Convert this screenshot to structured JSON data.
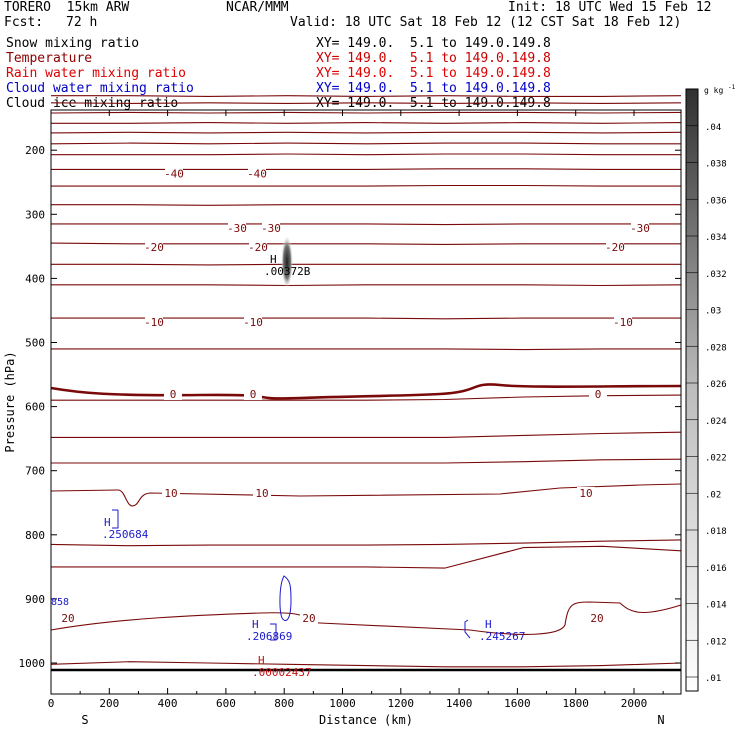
{
  "header": {
    "model": "TORERO  15km ARW",
    "center": "NCAR/MMM",
    "init": "Init: 18 UTC Wed 15 Feb 12",
    "fcst_label": "Fcst:",
    "fcst_hours": "72 h",
    "valid": "Valid: 18 UTC Sat 18 Feb 12 (12 CST Sat 18 Feb 12)"
  },
  "fields": [
    {
      "name": "Snow mixing ratio",
      "xy": "XY= 149.0.  5.1 to 149.0.149.8",
      "color": "#000000"
    },
    {
      "name": "Temperature",
      "xy": "XY= 149.0.  5.1 to 149.0.149.8",
      "color": "#8b0000"
    },
    {
      "name": "Rain water mixing ratio",
      "xy": "XY= 149.0.  5.1 to 149.0.149.8",
      "color": "#e00000"
    },
    {
      "name": "Cloud water mixing ratio",
      "xy": "XY= 149.0.  5.1 to 149.0.149.8",
      "color": "#0000c8"
    },
    {
      "name": "Cloud ice mixing ratio",
      "xy": "XY= 149.0.  5.1 to 149.0.149.8",
      "color": "#000000"
    }
  ],
  "colors": {
    "temperature": "#7a0a0a",
    "cloud_water": "#1a1acc",
    "rain_water": "#cc1010",
    "axis": "#000000"
  },
  "chart_data": {
    "type": "contour-cross-section",
    "xlabel": "Distance (km)",
    "ylabel": "Pressure (hPa)",
    "x_ticks": [
      0,
      200,
      400,
      600,
      800,
      1000,
      1200,
      1400,
      1600,
      1800,
      2000
    ],
    "y_ticks": [
      200,
      300,
      400,
      500,
      600,
      700,
      800,
      900,
      1000
    ],
    "xlim": [
      0,
      2170
    ],
    "ylim": [
      1050,
      100
    ],
    "left_end": "S",
    "right_end": "N",
    "temperature_contours": [
      {
        "p": [
          115,
          115,
          116,
          115,
          116,
          115,
          116,
          116,
          115
        ],
        "label": ""
      },
      {
        "p": [
          126,
          127,
          126,
          127,
          126,
          127,
          126,
          127,
          126
        ],
        "label": ""
      },
      {
        "p": [
          142,
          141,
          142,
          141,
          142,
          141,
          141,
          142,
          141
        ],
        "label": ""
      },
      {
        "p": [
          158,
          158,
          157,
          158,
          157,
          158,
          157,
          158,
          157
        ],
        "label": ""
      },
      {
        "p": [
          173,
          172,
          173,
          172,
          173,
          172,
          172,
          173,
          172
        ],
        "label": ""
      },
      {
        "p": [
          190,
          189,
          190,
          189,
          190,
          189,
          189,
          190,
          190
        ],
        "label": ""
      },
      {
        "p": [
          207,
          207,
          207,
          206,
          207,
          206,
          206,
          207,
          207
        ],
        "label": ""
      },
      {
        "p": [
          230,
          230,
          230,
          230,
          230,
          229,
          229,
          230,
          230
        ],
        "label": "-40",
        "labels_at": [
          420,
          810
        ]
      },
      {
        "p": [
          256,
          256,
          256,
          256,
          256,
          255,
          255,
          256,
          256
        ],
        "label": ""
      },
      {
        "p": [
          285,
          285,
          286,
          285,
          285,
          285,
          285,
          285,
          285
        ],
        "label": ""
      },
      {
        "p": [
          315,
          315,
          315,
          315,
          315,
          316,
          315,
          315,
          315
        ],
        "label": "-30",
        "labels_at": [
          730,
          880,
          2060
        ]
      },
      {
        "p": [
          345,
          346,
          346,
          346,
          346,
          347,
          346,
          346,
          346
        ],
        "label": "-20",
        "labels_at": [
          400,
          790,
          2170
        ]
      },
      {
        "p": [
          378,
          378,
          379,
          378,
          378,
          378,
          378,
          378,
          378
        ],
        "label": ""
      },
      {
        "p": [
          410,
          410,
          410,
          411,
          410,
          410,
          410,
          411,
          410
        ],
        "label": ""
      },
      {
        "p": [
          462,
          462,
          462,
          462,
          462,
          463,
          462,
          462,
          462
        ],
        "label": "-10",
        "labels_at": [
          400,
          780,
          2210
        ]
      },
      {
        "p": [
          510,
          510,
          510,
          510,
          510,
          510,
          511,
          510,
          510
        ],
        "label": ""
      },
      {
        "p": [
          590,
          590,
          590,
          590,
          590,
          589,
          585,
          583,
          582
        ],
        "label": ""
      },
      {
        "p": [
          648,
          648,
          648,
          648,
          648,
          648,
          645,
          642,
          640
        ],
        "label": ""
      },
      {
        "p": [
          688,
          688,
          688,
          688,
          688,
          688,
          686,
          683,
          682
        ],
        "label": ""
      },
      {
        "p": [
          815,
          817,
          816,
          816,
          816,
          815,
          813,
          810,
          808
        ],
        "label": ""
      },
      {
        "p": [
          850,
          850,
          850,
          850,
          850,
          852,
          820,
          818,
          825
        ],
        "label": ""
      },
      {
        "p": [
          1002,
          998,
          1000,
          1002,
          1004,
          1006,
          1006,
          1004,
          1000
        ],
        "label": ""
      }
    ],
    "zero_isotherm": {
      "label": "0",
      "labels_at": [
        460,
        790,
        2160
      ]
    },
    "ten_isotherm": {
      "label": "10",
      "labels_at": [
        440,
        810,
        2120
      ]
    },
    "twenty_isotherm": {
      "label": "20",
      "labels_at": [
        1070,
        190,
        2110
      ]
    },
    "cloud_water_maxima": [
      {
        "label": "H",
        "value": ".250684",
        "x_km": 280,
        "p": 800
      },
      {
        "label": "H",
        "value": ".206869",
        "x_km": 700,
        "p": 962
      },
      {
        "label": "H",
        "value": ".245267",
        "x_km": 1560,
        "p": 958
      },
      {
        "label": "",
        "value": "858",
        "x_km": 0,
        "p": 905
      }
    ],
    "rain_water_maxima": [
      {
        "label": "H",
        "value": ".00002437",
        "x_km": 700,
        "p": 1012
      }
    ],
    "snow_maxima": [
      {
        "label": "H",
        "value": ".00372B",
        "x_km": 720,
        "p": 382
      }
    ],
    "colorbar": {
      "unit": "g kg",
      "unit_exp": "-1",
      "ticks": [
        ".01",
        ".012",
        ".014",
        ".016",
        ".018",
        ".02",
        ".022",
        ".024",
        ".026",
        ".028",
        ".03",
        ".032",
        ".034",
        ".036",
        ".038",
        ".04"
      ]
    }
  }
}
